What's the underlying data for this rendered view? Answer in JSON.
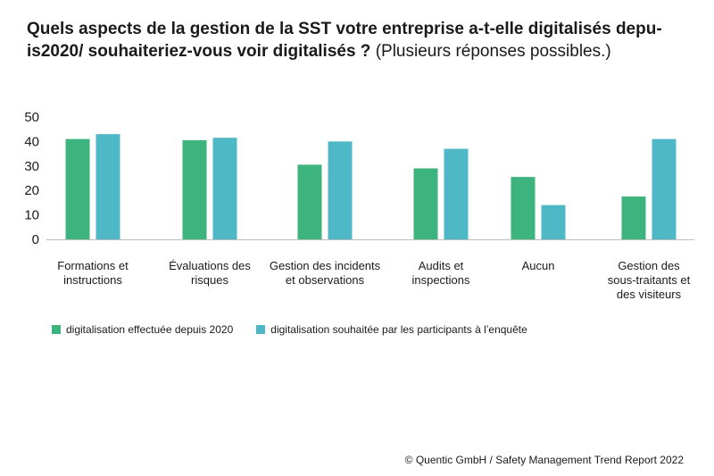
{
  "title": {
    "bold": "Quels aspects de la gestion de la SST votre entreprise a-t-elle digitalisés depu-is2020/ souhaiteriez-vous voir digitalisés ?",
    "light": "(Plusieurs réponses possibles.)"
  },
  "colors": {
    "series1": "#3db37d",
    "series2": "#4fb8c6",
    "axis": "#bdbdbd"
  },
  "chart_data": {
    "type": "bar",
    "categories": [
      [
        "Formations et",
        "instructions"
      ],
      [
        "Évaluations des",
        "risques"
      ],
      [
        "Gestion des incidents",
        "et observations"
      ],
      [
        "Audits et",
        "inspections"
      ],
      [
        "Aucun"
      ],
      [
        "Gestion des",
        "sous-traitants et",
        "des visiteurs"
      ]
    ],
    "series": [
      {
        "name": "digitalisation effectuée depuis 2020",
        "values": [
          41,
          40.5,
          30.5,
          29,
          25.5,
          17.5
        ]
      },
      {
        "name": "digitalisation souhaitée par les participants à l’enquête",
        "values": [
          43,
          41.5,
          40,
          37,
          14,
          41
        ]
      }
    ],
    "ylim": [
      0,
      50
    ],
    "yticks": [
      0,
      10,
      20,
      30,
      40,
      50
    ],
    "grid": false,
    "legend_position": "bottom-left"
  },
  "source": "© Quentic GmbH / Safety Management Trend Report 2022"
}
